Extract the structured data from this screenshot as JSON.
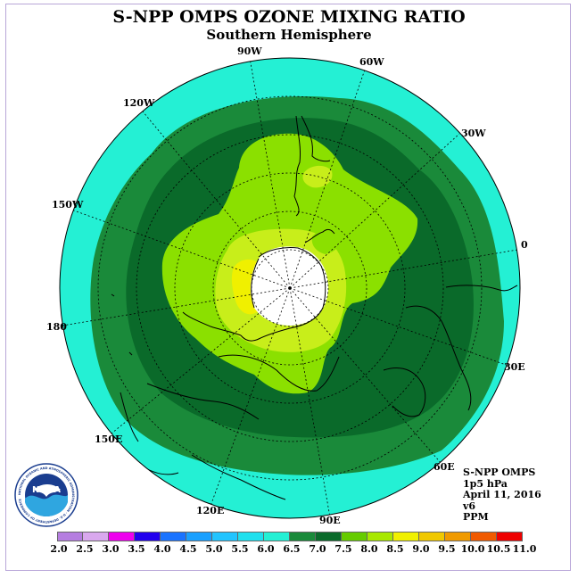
{
  "title": "S-NPP OMPS OZONE MIXING RATIO",
  "subtitle": "Southern Hemisphere",
  "logo_text": "NOAA",
  "logo_ring_text": "NATIONAL OCEANIC AND ATMOSPHERIC ADMINISTRATION · U.S. DEPARTMENT OF COMMERCE",
  "longitude_labels": [
    "90W",
    "60W",
    "30W",
    "120W",
    "150W",
    "0",
    "180",
    "30E",
    "150E",
    "60E",
    "120E",
    "90E"
  ],
  "info": {
    "line1": "S-NPP OMPS",
    "line2": "1p5 hPa",
    "line3": "April 11, 2016",
    "line4": "v6",
    "line5": "PPM"
  },
  "colorbar": {
    "labels": [
      "2.0",
      "2.5",
      "3.0",
      "3.5",
      "4.0",
      "4.5",
      "5.0",
      "5.5",
      "6.0",
      "6.5",
      "7.0",
      "7.5",
      "8.0",
      "8.5",
      "9.0",
      "9.5",
      "10.0",
      "10.5",
      "11.0"
    ],
    "colors": [
      "#b57ee0",
      "#d9a8ee",
      "#ee00ee",
      "#2200ee",
      "#1a73ff",
      "#1aa0ff",
      "#22c4ff",
      "#1fe0ee",
      "#24f0d4",
      "#1a8a3a",
      "#0a6a2a",
      "#66cc00",
      "#a8e800",
      "#f0f000",
      "#f0c800",
      "#f09a00",
      "#f05a00",
      "#ee0000",
      "#8a5030"
    ]
  },
  "colors": {
    "c60": "#24f0d4",
    "c65": "#1a8a3a",
    "c70": "#0a6a2a",
    "c75": "#8be000",
    "c80": "#c8ee1a",
    "c85": "#f0f000",
    "c90": "#f0c800",
    "pole": "#ffffff"
  }
}
